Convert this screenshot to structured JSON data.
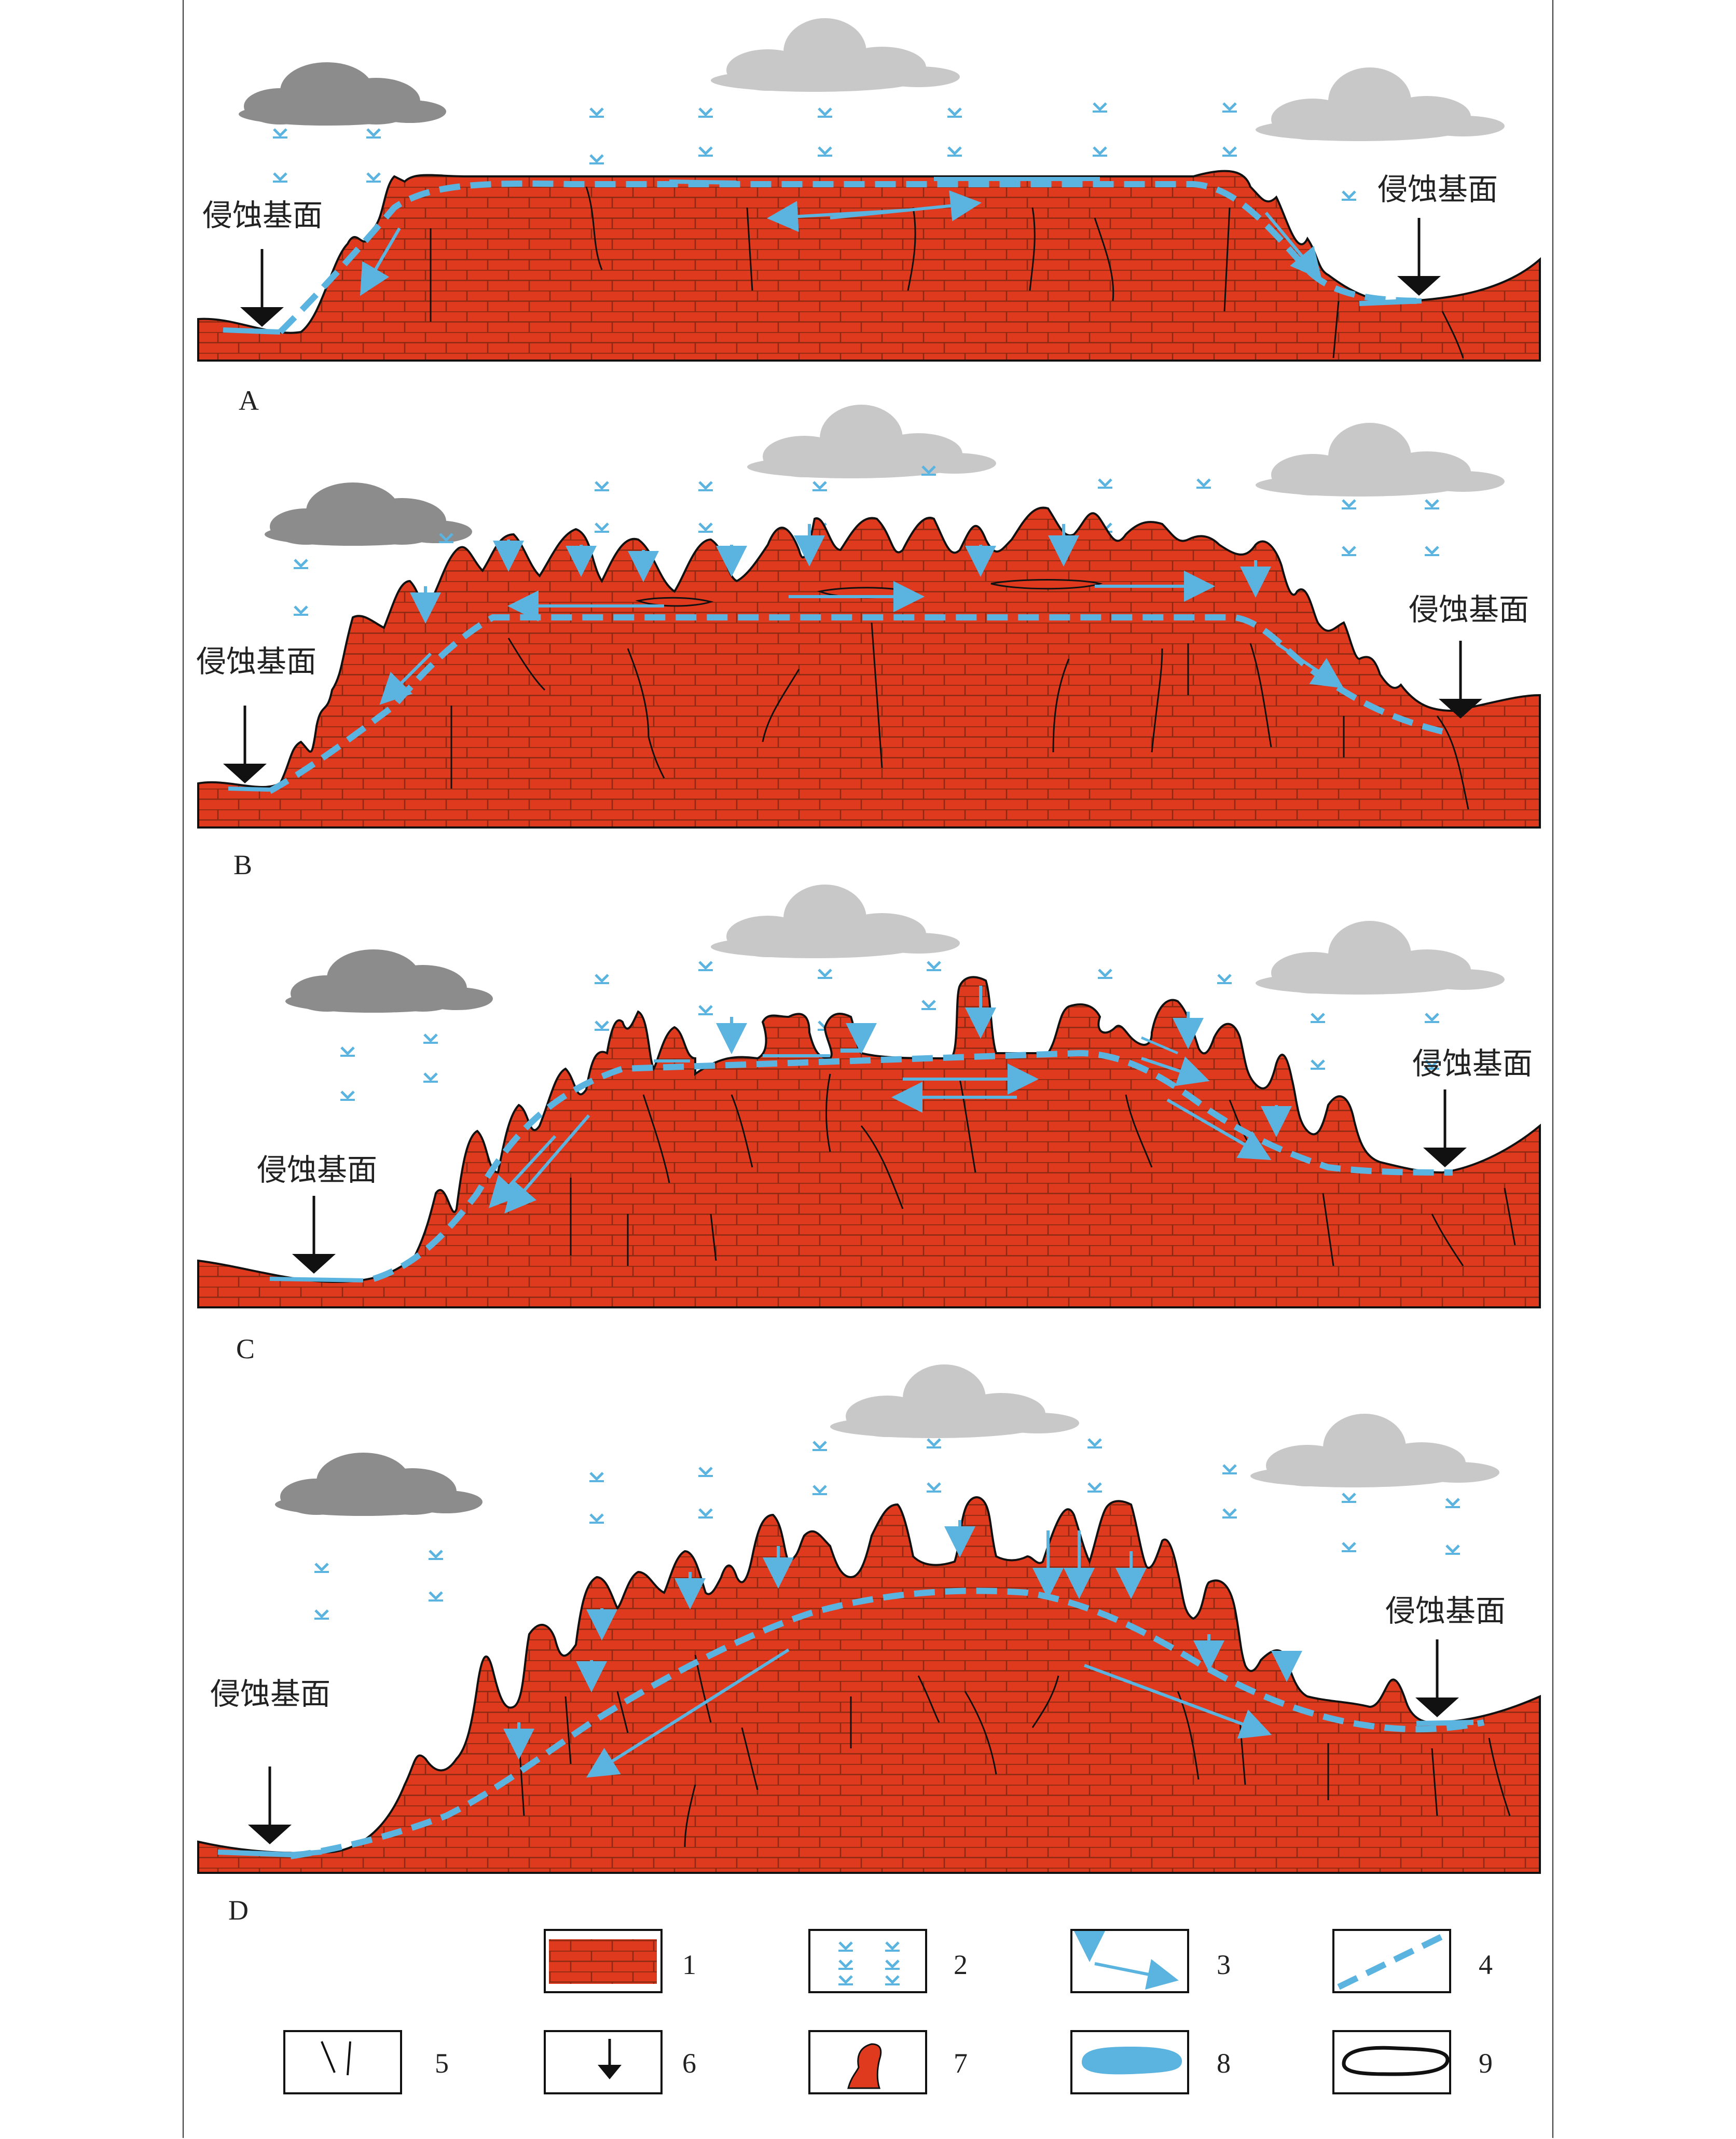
{
  "panels": [
    {
      "id": "A",
      "label": "A",
      "erosion_base_left": "侵蚀基面",
      "erosion_base_right": "侵蚀基面"
    },
    {
      "id": "B",
      "label": "B",
      "erosion_base_left": "侵蚀基面",
      "erosion_base_right": "侵蚀基面"
    },
    {
      "id": "C",
      "label": "C",
      "erosion_base_left": "侵蚀基面",
      "erosion_base_right": "侵蚀基面"
    },
    {
      "id": "D",
      "label": "D",
      "erosion_base_left": "侵蚀基面",
      "erosion_base_right": "侵蚀基面"
    }
  ],
  "legend": [
    {
      "num": "1",
      "symbol": "limestone-brick"
    },
    {
      "num": "2",
      "symbol": "rain-drops"
    },
    {
      "num": "3",
      "symbol": "water-flow-arrows"
    },
    {
      "num": "4",
      "symbol": "dashed-water-table"
    },
    {
      "num": "5",
      "symbol": "fractures"
    },
    {
      "num": "6",
      "symbol": "erosion-base-arrow"
    },
    {
      "num": "7",
      "symbol": "karst-peak"
    },
    {
      "num": "8",
      "symbol": "water-body"
    },
    {
      "num": "9",
      "symbol": "cave-outline"
    }
  ],
  "colors": {
    "rock": "#e03a1e",
    "brick_line": "#8a2a12",
    "water": "#5bb3df",
    "cloud_dark": "#8c8c8c",
    "cloud_light": "#c8c8c8",
    "outline": "#222222"
  }
}
